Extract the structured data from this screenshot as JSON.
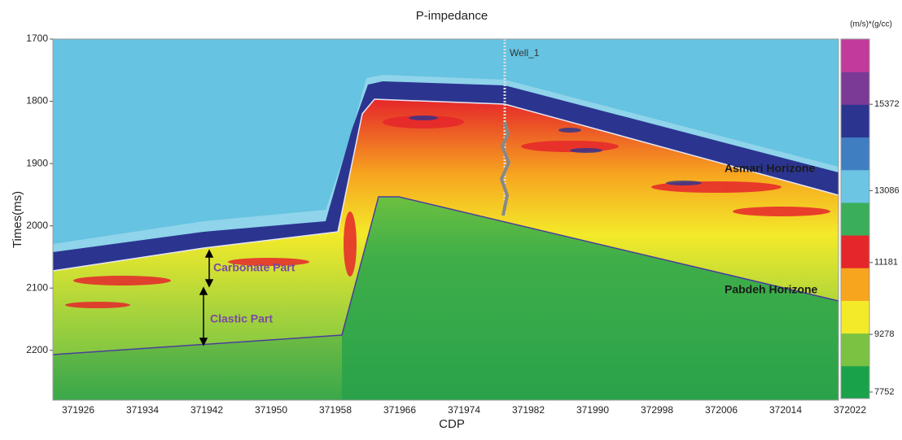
{
  "chart_data": {
    "type": "seismic-section",
    "title": "P-impedance",
    "x_label": "CDP",
    "y_label": "Times(ms)",
    "ylim": [
      1700,
      2280
    ],
    "yticks": [
      1700,
      1800,
      1900,
      2000,
      2100,
      2200
    ],
    "x_tick_labels": [
      "371926",
      "371934",
      "371942",
      "371950",
      "371958",
      "371966",
      "371974",
      "371982",
      "371990",
      "372998",
      "372006",
      "372014",
      "372022"
    ],
    "colorbar": {
      "label": "(m/s)*(g/cc)",
      "clim": [
        7580,
        17100
      ],
      "ticks": [
        7752,
        9278,
        11181,
        13086,
        15372
      ],
      "colors": [
        "#1aa24a",
        "#7cc242",
        "#f3ea2a",
        "#f7a51f",
        "#e5262b",
        "#3aae5a",
        "#6cc5e3",
        "#3f7fc1",
        "#2b3590",
        "#7b3a96",
        "#c23a9b"
      ]
    },
    "annotations": [
      "Well_1",
      "Asmari Horizone",
      "Pabdeh Horizone",
      "Carbonate Part",
      "Clastic Part"
    ]
  }
}
